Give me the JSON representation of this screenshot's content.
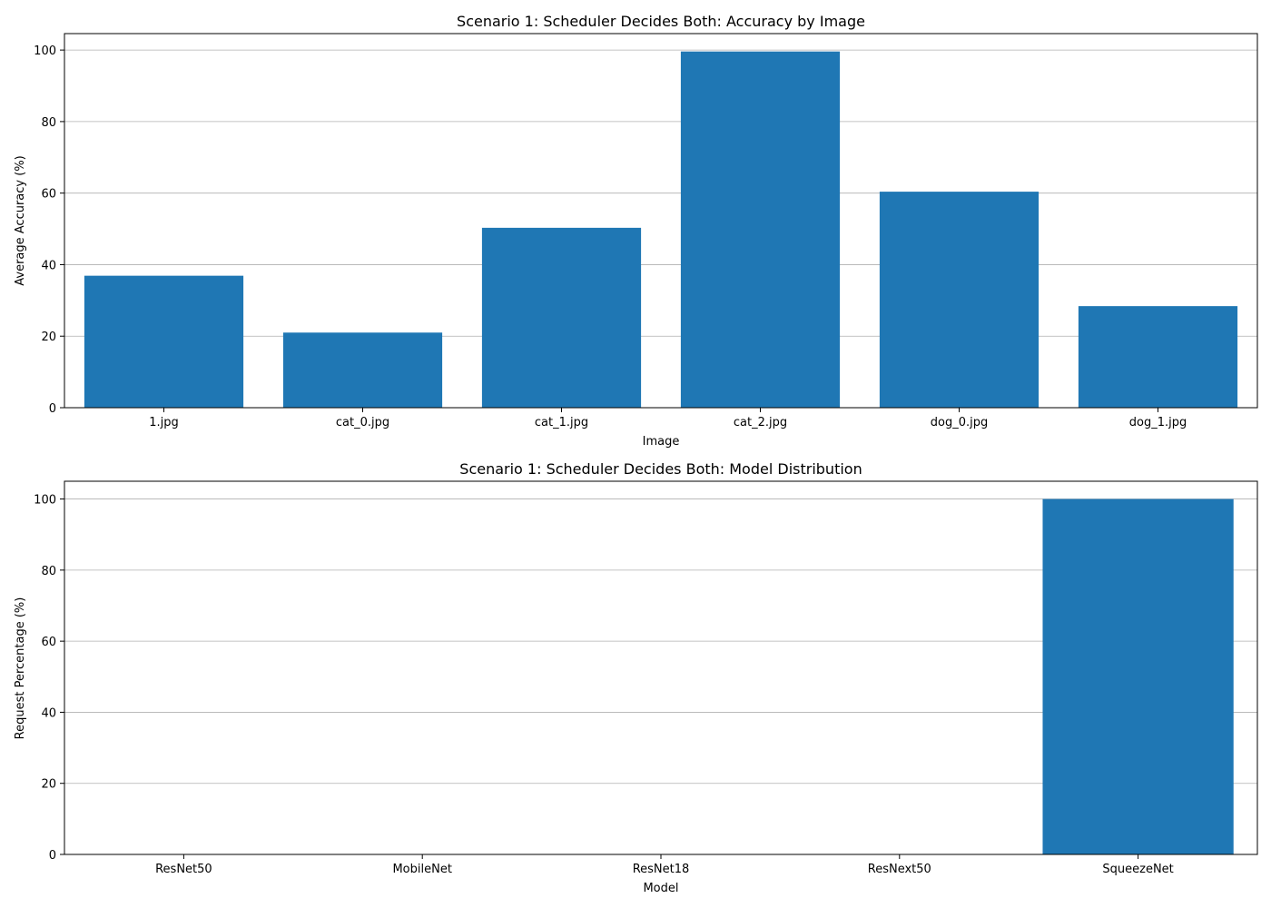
{
  "chart_data": [
    {
      "type": "bar",
      "title": "Scenario 1: Scheduler Decides Both: Accuracy by Image",
      "xlabel": "Image",
      "ylabel": "Average Accuracy (%)",
      "categories": [
        "1.jpg",
        "cat_0.jpg",
        "cat_1.jpg",
        "cat_2.jpg",
        "dog_0.jpg",
        "dog_1.jpg"
      ],
      "values": [
        36.9,
        21.0,
        50.3,
        99.6,
        60.4,
        28.4
      ],
      "ylim": [
        0,
        104.6
      ],
      "yticks": [
        0,
        20,
        40,
        60,
        80,
        100
      ],
      "grid": "horizontal",
      "bar_color": "#1f77b4"
    },
    {
      "type": "bar",
      "title": "Scenario 1: Scheduler Decides Both: Model Distribution",
      "xlabel": "Model",
      "ylabel": "Request Percentage (%)",
      "categories": [
        "ResNet50",
        "MobileNet",
        "ResNet18",
        "ResNext50",
        "SqueezeNet"
      ],
      "values": [
        0,
        0,
        0,
        0,
        100
      ],
      "ylim": [
        0,
        105
      ],
      "yticks": [
        0,
        20,
        40,
        60,
        80,
        100
      ],
      "grid": "horizontal",
      "bar_color": "#1f77b4"
    }
  ]
}
